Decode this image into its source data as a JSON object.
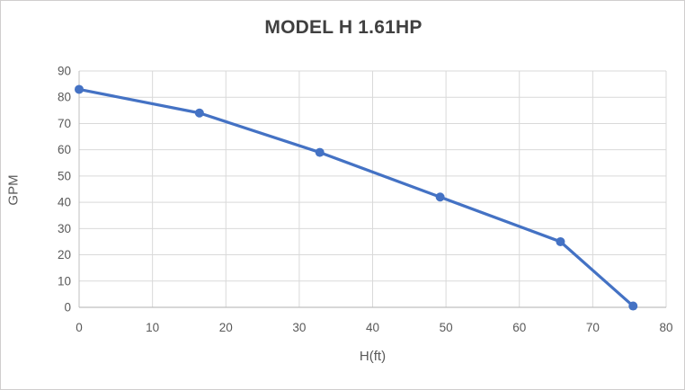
{
  "window": {
    "background": "#FFFFFF",
    "border_color": "#D0CECE"
  },
  "chart_data": {
    "type": "line",
    "title": "MODEL H 1.61HP",
    "xlabel": "H(ft)",
    "ylabel": "GPM",
    "series": [
      {
        "name": "MODEL H 1.61HP",
        "x": [
          0,
          16.4,
          32.8,
          49.2,
          65.6,
          75.5
        ],
        "y": [
          83,
          74,
          59,
          42,
          25,
          0.5
        ]
      }
    ],
    "xlim": [
      0,
      80
    ],
    "ylim": [
      0,
      90
    ],
    "xticks": [
      0,
      10,
      20,
      30,
      40,
      50,
      60,
      70,
      80
    ],
    "yticks": [
      0,
      10,
      20,
      30,
      40,
      50,
      60,
      70,
      80,
      90
    ],
    "grid": true,
    "legend": false,
    "line_color": "#4472C4",
    "marker_color": "#4472C4",
    "marker": "circle",
    "gridline_color": "#D9D9D9",
    "axis_line_color": "#BFBFBF",
    "tick_label_color": "#595959",
    "axis_title_color": "#595959",
    "title_color": "#404040"
  }
}
